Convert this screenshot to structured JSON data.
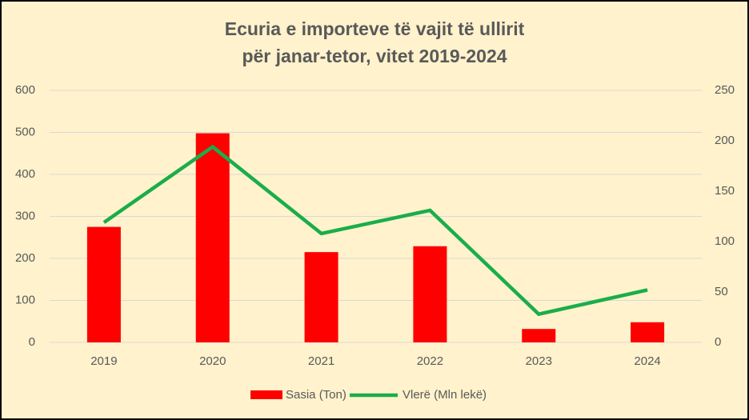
{
  "chart_data": {
    "type": "combo",
    "title": [
      "Ecuria e importeve të vajit të ullirit",
      "për janar-tetor, vitet 2019-2024"
    ],
    "categories": [
      "2019",
      "2020",
      "2021",
      "2022",
      "2023",
      "2024"
    ],
    "series": [
      {
        "name": "Sasia (Ton)",
        "type": "bar",
        "color": "#ff0000",
        "values": [
          275,
          498,
          215,
          229,
          32,
          48
        ]
      },
      {
        "name": "Vlerë (Mln lekë)",
        "type": "line",
        "axis": "y2",
        "color": "#1aad4b",
        "values": [
          119,
          194,
          108,
          131,
          28,
          52
        ]
      }
    ],
    "ylim": [
      0,
      600
    ],
    "yticks": [
      0,
      100,
      200,
      300,
      400,
      500,
      600
    ],
    "y2lim": [
      0,
      250
    ],
    "y2ticks": [
      0,
      50,
      100,
      150,
      200,
      250
    ],
    "grid": true,
    "legend": "bottom"
  }
}
